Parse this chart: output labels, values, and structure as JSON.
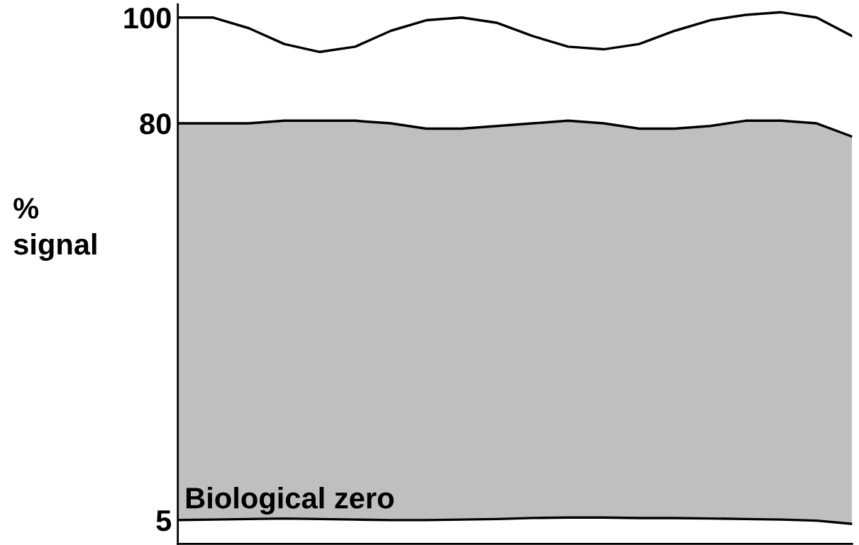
{
  "chart_data": {
    "type": "line",
    "ylabel": "%\nsignal",
    "categories": [
      null,
      null,
      null,
      null,
      null,
      null,
      null,
      null,
      null,
      null,
      null,
      null,
      null,
      null,
      null,
      null,
      null,
      null,
      null,
      null
    ],
    "series": [
      {
        "color": "#000000",
        "values": [
          100,
          100,
          98,
          95,
          93.5,
          94.5,
          97.5,
          99.5,
          100,
          99,
          96.5,
          94.5,
          94,
          95,
          97.5,
          99.5,
          100.5,
          101,
          100,
          96.5
        ]
      },
      {
        "color": "#000000",
        "values": [
          80,
          80,
          80,
          80.5,
          80.5,
          80.5,
          80,
          79,
          79,
          79.5,
          80,
          80.5,
          80,
          79,
          79,
          79.5,
          80.5,
          80.5,
          80,
          77.5
        ],
        "lower": [
          5,
          5.1,
          5.2,
          5.3,
          5.2,
          5.1,
          5,
          5,
          5.1,
          5.2,
          5.4,
          5.5,
          5.5,
          5.4,
          5.4,
          5.3,
          5.2,
          5.1,
          4.9,
          4.3
        ],
        "upper": [
          80,
          80,
          80,
          80.5,
          80.5,
          80.5,
          80,
          79,
          79,
          79.5,
          80,
          80.5,
          80,
          79,
          79,
          79.5,
          80.5,
          80.5,
          80,
          77.5
        ]
      },
      {
        "color": "#000000",
        "values": [
          5,
          5.1,
          5.2,
          5.3,
          5.2,
          5.1,
          5,
          5,
          5.1,
          5.2,
          5.4,
          5.5,
          5.5,
          5.4,
          5.4,
          5.3,
          5.2,
          5.1,
          4.9,
          4.3
        ]
      }
    ],
    "ylim": [
      0.5,
      102.5
    ],
    "yticks": [
      5,
      80,
      100
    ],
    "tick_labels": "y",
    "grid": false,
    "legend": false,
    "annotations": [
      "Biological zero"
    ]
  }
}
